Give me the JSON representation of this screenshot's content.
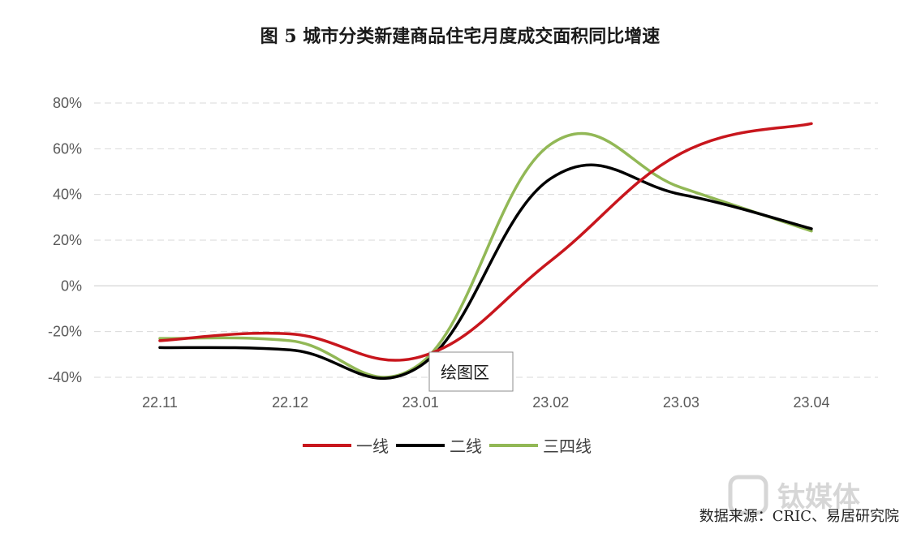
{
  "title": "图 5   城市分类新建商品住宅月度成交面积同比增速",
  "source": "数据来源：CRIC、易居研究院",
  "tooltip": "绘图区",
  "watermark": "钛媒体",
  "chart_data": {
    "type": "line",
    "categories": [
      "22.11",
      "22.12",
      "23.01",
      "23.02",
      "23.03",
      "23.04"
    ],
    "y_ticks": [
      "80%",
      "60%",
      "40%",
      "20%",
      "0%",
      "-20%",
      "-40%"
    ],
    "ylim": [
      -40,
      80
    ],
    "grid": true,
    "legend_position": "bottom",
    "series": [
      {
        "name": "一线",
        "color": "#c8161d",
        "values": [
          -24,
          -21,
          -31,
          11,
          58,
          71
        ]
      },
      {
        "name": "二线",
        "color": "#000000",
        "values": [
          -27,
          -28,
          -35,
          47,
          40,
          25
        ]
      },
      {
        "name": "三四线",
        "color": "#92b856",
        "values": [
          -23,
          -24,
          -34,
          62,
          43,
          24
        ]
      }
    ]
  }
}
